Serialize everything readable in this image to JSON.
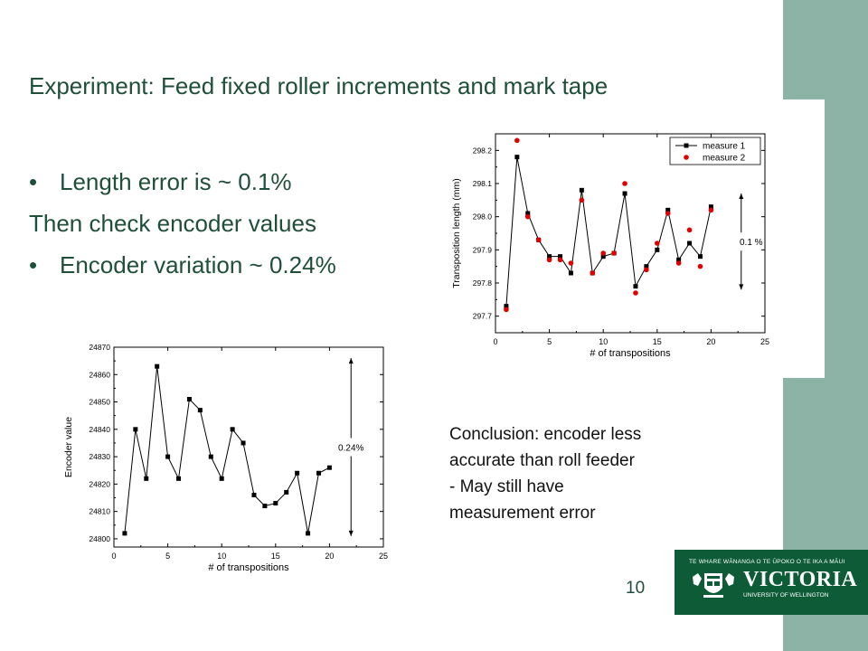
{
  "slide": {
    "title": "Experiment: Feed fixed roller increments and mark tape",
    "bullet_symbol": "•",
    "bullet1": "Length error is ~ 0.1%",
    "line2": "Then check encoder values",
    "bullet3": "Encoder variation ~ 0.24%",
    "conclusion_lines": [
      "Conclusion: encoder less",
      "accurate than roll feeder",
      "- May still have",
      "measurement error"
    ],
    "page_number": "10",
    "accent_color": "#8db3a6",
    "text_color": "#1f4f3a"
  },
  "logo": {
    "tagline": "TE WHARE WĀNANGA O TE ŪPOKO O TE IKA A MĀUI",
    "name": "VICTORIA",
    "subtitle": "UNIVERSITY OF WELLINGTON",
    "background": "#0d5c37"
  },
  "chart_data": [
    {
      "type": "line",
      "ylabel": "Transposition length (mm)",
      "xlabel": "# of transpositions",
      "xlim": [
        0,
        25
      ],
      "ylim": [
        297.65,
        298.25
      ],
      "xticks": [
        0,
        5,
        10,
        15,
        20,
        25
      ],
      "yticks": [
        297.7,
        297.8,
        297.9,
        298.0,
        298.1,
        298.2
      ],
      "ytick_labels": [
        "297.7",
        "297.8",
        "297.9",
        "298.0",
        "298.1",
        "298.2"
      ],
      "legend_position": "top-right",
      "series": [
        {
          "name": "measure 1",
          "marker": "square",
          "color": "#000000",
          "line": true,
          "x": [
            1,
            2,
            3,
            4,
            5,
            6,
            7,
            8,
            9,
            10,
            11,
            12,
            13,
            14,
            15,
            16,
            17,
            18,
            19,
            20
          ],
          "values": [
            297.73,
            298.18,
            298.01,
            297.93,
            297.88,
            297.88,
            297.83,
            298.08,
            297.83,
            297.88,
            297.89,
            298.07,
            297.79,
            297.85,
            297.9,
            298.02,
            297.87,
            297.92,
            297.88,
            298.03
          ]
        },
        {
          "name": "measure 2",
          "marker": "circle",
          "color": "#e00000",
          "line": false,
          "x": [
            1,
            2,
            3,
            4,
            5,
            6,
            7,
            8,
            9,
            10,
            11,
            12,
            13,
            14,
            15,
            16,
            17,
            18,
            19,
            20
          ],
          "values": [
            297.72,
            298.23,
            298.0,
            297.93,
            297.87,
            297.87,
            297.86,
            298.05,
            297.83,
            297.89,
            297.89,
            298.1,
            297.77,
            297.84,
            297.92,
            298.01,
            297.86,
            297.96,
            297.85,
            298.02
          ]
        }
      ],
      "annotation": {
        "text": "0.1 %",
        "x": 22.8,
        "y_from": 297.78,
        "y_to": 298.07
      }
    },
    {
      "type": "line",
      "ylabel": "Encoder value",
      "xlabel": "# of transpositions",
      "xlim": [
        0,
        25
      ],
      "ylim": [
        24797,
        24870
      ],
      "xticks": [
        0,
        5,
        10,
        15,
        20,
        25
      ],
      "yticks": [
        24800,
        24810,
        24820,
        24830,
        24840,
        24850,
        24860,
        24870
      ],
      "ytick_labels": [
        "24800",
        "24810",
        "24820",
        "24830",
        "24840",
        "24850",
        "24860",
        "24870"
      ],
      "series": [
        {
          "marker": "square",
          "color": "#000000",
          "line": true,
          "x": [
            1,
            2,
            3,
            4,
            5,
            6,
            7,
            8,
            9,
            10,
            11,
            12,
            13,
            14,
            15,
            16,
            17,
            18,
            19,
            20
          ],
          "values": [
            24802,
            24840,
            24822,
            24863,
            24830,
            24822,
            24851,
            24847,
            24830,
            24822,
            24840,
            24835,
            24816,
            24812,
            24813,
            24817,
            24824,
            24802,
            24824,
            24826
          ]
        }
      ],
      "annotation": {
        "text": "0.24%",
        "x": 22,
        "y_from": 24801,
        "y_to": 24866
      }
    }
  ]
}
